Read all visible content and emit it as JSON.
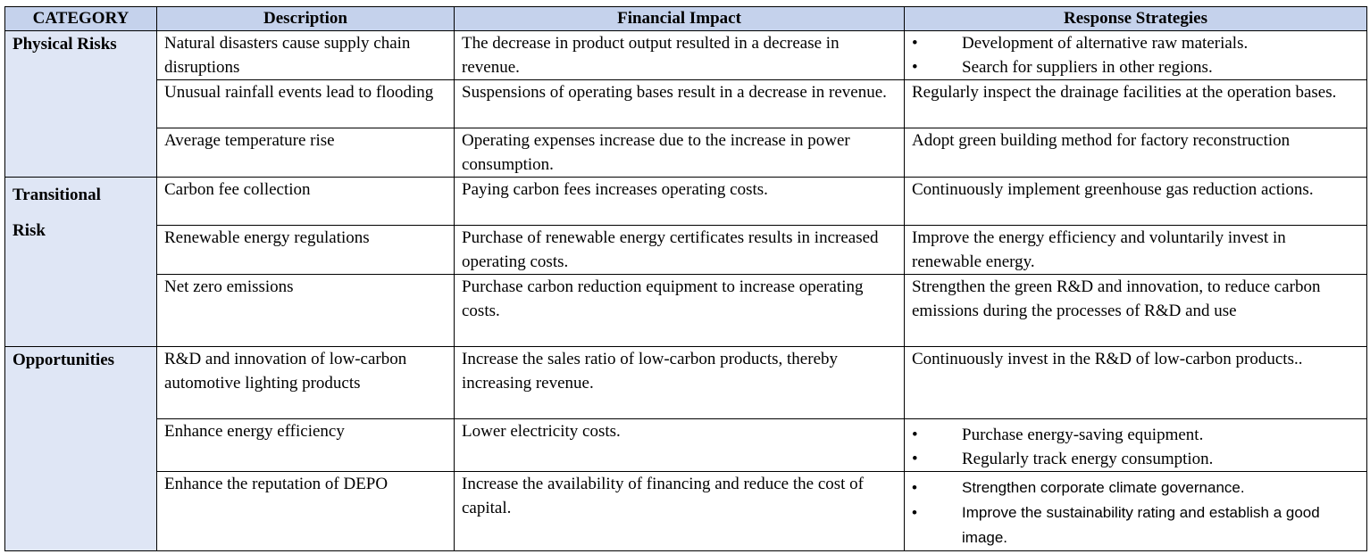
{
  "header": {
    "category": "CATEGORY",
    "description": "Description",
    "financial_impact": "Financial Impact",
    "response_strategies": "Response Strategies"
  },
  "groups": [
    {
      "category": "Physical Risks",
      "rows": [
        {
          "description": "Natural disasters cause supply chain disruptions",
          "impact": "The decrease in product output resulted in a decrease in revenue.",
          "strategies": [
            "Development of alternative raw materials.",
            "Search for suppliers in other regions."
          ]
        },
        {
          "description": "Unusual rainfall events lead to flooding",
          "impact": "Suspensions of operating bases result in a decrease in revenue.",
          "strategy": "Regularly inspect the drainage facilities at the operation bases."
        },
        {
          "description": "Average temperature rise",
          "impact": "Operating expenses increase due to the increase in power consumption.",
          "strategy": "Adopt green building method for factory reconstruction"
        }
      ]
    },
    {
      "category": "Transitional Risk",
      "rows": [
        {
          "description": "Carbon fee collection",
          "impact": "Paying carbon fees increases operating costs.",
          "strategy": "Continuously implement greenhouse gas reduction actions."
        },
        {
          "description": "Renewable energy regulations",
          "impact": "Purchase of renewable energy certificates results in increased operating costs.",
          "strategy": "Improve the energy efficiency and voluntarily invest in renewable energy."
        },
        {
          "description": "Net zero emissions",
          "impact": "Purchase carbon reduction equipment to increase operating costs.",
          "strategy": "Strengthen the green R&D and innovation, to reduce carbon emissions during the processes of R&D and use"
        }
      ]
    },
    {
      "category": "Opportunities",
      "rows": [
        {
          "description": "R&D and innovation of low-carbon automotive lighting products",
          "impact": "Increase the sales ratio of low-carbon products, thereby increasing revenue.",
          "strategy": "Continuously invest in the R&D of low-carbon products.."
        },
        {
          "description": "Enhance energy efficiency",
          "impact": "Lower electricity costs.",
          "strategies": [
            "Purchase energy-saving equipment.",
            "Regularly track energy consumption."
          ]
        },
        {
          "description": "Enhance the reputation of DEPO",
          "impact": "Increase the availability of financing and reduce the cost of capital.",
          "strategies": [
            "Strengthen corporate climate governance.",
            "Improve the sustainability rating and establish a good image."
          ]
        }
      ]
    }
  ],
  "bullet_symbol": "•"
}
